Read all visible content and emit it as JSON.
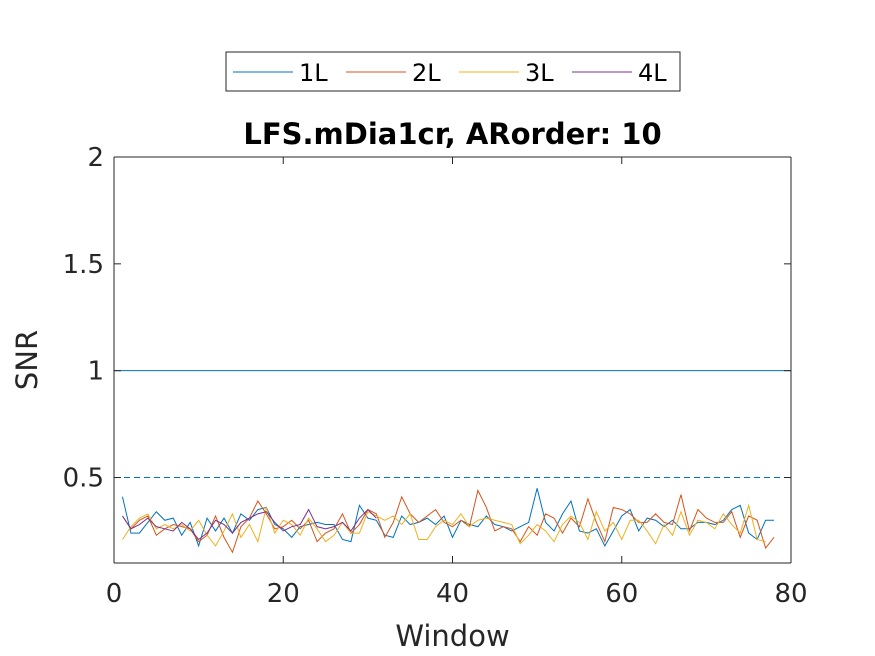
{
  "chart_data": {
    "type": "line",
    "title": "LFS.mDia1cr, ARorder: 10",
    "xlabel": "Window",
    "ylabel": "SNR",
    "xlim": [
      0,
      80
    ],
    "ylim": [
      0.1,
      2
    ],
    "xticks": [
      0,
      20,
      40,
      60,
      80
    ],
    "xtick_labels": [
      "0",
      "20",
      "40",
      "60",
      "80"
    ],
    "yticks": [
      0.5,
      1,
      1.5,
      2
    ],
    "ytick_labels": [
      "0.5",
      "1",
      "1.5",
      "2"
    ],
    "grid": false,
    "legend_position": "top-center, outside plot, horizontal",
    "reference_lines": [
      {
        "y": 0.5,
        "style": "dashed",
        "color": "#0072BD"
      },
      {
        "y": 1.0,
        "style": "solid",
        "color": "#0072BD"
      },
      {
        "y": 2.0,
        "style": "dashed",
        "color": "#0072BD"
      }
    ],
    "series": [
      {
        "name": "1L",
        "color": "#0072BD",
        "x": [
          1,
          2,
          3,
          4,
          5,
          6,
          7,
          8,
          9,
          10,
          11,
          12,
          13,
          14,
          15,
          16,
          17,
          18,
          19,
          20,
          21,
          22,
          23,
          24,
          25,
          26,
          27,
          28,
          29,
          30,
          31,
          32,
          33,
          34,
          35,
          36,
          37,
          38,
          39,
          40,
          41,
          42,
          43,
          44,
          45,
          46,
          47,
          48,
          49,
          50,
          51,
          52,
          53,
          54,
          55,
          56,
          57,
          58,
          59,
          60,
          61,
          62,
          63,
          64,
          65,
          66,
          67,
          68,
          69,
          70,
          71,
          72,
          73,
          74,
          75,
          76,
          77,
          78
        ],
        "values": [
          0.41,
          0.24,
          0.24,
          0.29,
          0.34,
          0.3,
          0.31,
          0.23,
          0.29,
          0.18,
          0.31,
          0.25,
          0.31,
          0.24,
          0.33,
          0.3,
          0.35,
          0.36,
          0.28,
          0.26,
          0.22,
          0.27,
          0.28,
          0.29,
          0.28,
          0.28,
          0.21,
          0.2,
          0.37,
          0.31,
          0.3,
          0.23,
          0.22,
          0.32,
          0.28,
          0.29,
          0.31,
          0.28,
          0.32,
          0.22,
          0.3,
          0.28,
          0.27,
          0.32,
          0.28,
          0.27,
          0.25,
          0.27,
          0.29,
          0.45,
          0.29,
          0.25,
          0.33,
          0.39,
          0.25,
          0.24,
          0.26,
          0.18,
          0.25,
          0.32,
          0.35,
          0.25,
          0.31,
          0.3,
          0.27,
          0.3,
          0.26,
          0.26,
          0.29,
          0.29,
          0.28,
          0.3,
          0.35,
          0.37,
          0.24,
          0.21,
          0.3,
          0.3
        ]
      },
      {
        "name": "2L",
        "color": "#D95319",
        "x": [
          1,
          2,
          3,
          4,
          5,
          6,
          7,
          8,
          9,
          10,
          11,
          12,
          13,
          14,
          15,
          16,
          17,
          18,
          19,
          20,
          21,
          22,
          23,
          24,
          25,
          26,
          27,
          28,
          29,
          30,
          31,
          32,
          33,
          34,
          35,
          36,
          37,
          38,
          39,
          40,
          41,
          42,
          43,
          44,
          45,
          46,
          47,
          48,
          49,
          50,
          51,
          52,
          53,
          54,
          55,
          56,
          57,
          58,
          59,
          60,
          61,
          62,
          63,
          64,
          65,
          66,
          67,
          68,
          69,
          70,
          71,
          72,
          73,
          74,
          75,
          76,
          77,
          78
        ],
        "values": [
          0.32,
          0.26,
          0.3,
          0.32,
          0.23,
          0.26,
          0.28,
          0.27,
          0.26,
          0.2,
          0.23,
          0.32,
          0.22,
          0.15,
          0.27,
          0.31,
          0.39,
          0.33,
          0.26,
          0.27,
          0.3,
          0.26,
          0.3,
          0.2,
          0.24,
          0.26,
          0.33,
          0.24,
          0.28,
          0.35,
          0.33,
          0.22,
          0.29,
          0.41,
          0.33,
          0.29,
          0.32,
          0.35,
          0.29,
          0.27,
          0.3,
          0.27,
          0.44,
          0.36,
          0.25,
          0.27,
          0.26,
          0.2,
          0.27,
          0.23,
          0.33,
          0.31,
          0.24,
          0.31,
          0.27,
          0.4,
          0.29,
          0.2,
          0.36,
          0.35,
          0.33,
          0.29,
          0.29,
          0.33,
          0.29,
          0.28,
          0.42,
          0.25,
          0.35,
          0.31,
          0.29,
          0.29,
          0.34,
          0.22,
          0.32,
          0.3,
          0.17,
          0.22
        ]
      },
      {
        "name": "3L",
        "color": "#EDB120",
        "x": [
          1,
          2,
          3,
          4,
          5,
          6,
          7,
          8,
          9,
          10,
          11,
          12,
          13,
          14,
          15,
          16,
          17,
          18,
          19,
          20,
          21,
          22,
          23,
          24,
          25,
          26,
          27,
          28,
          29,
          30,
          31,
          32,
          33,
          34,
          35,
          36,
          37,
          38,
          39,
          40,
          41,
          42,
          43,
          44,
          45,
          46,
          47,
          48,
          49,
          50,
          51,
          52,
          53,
          54,
          55,
          56,
          57,
          58,
          59,
          60,
          61,
          62,
          63,
          64,
          65,
          66,
          67,
          68,
          69,
          70,
          71,
          72,
          73,
          74,
          75,
          76,
          77
        ],
        "values": [
          0.21,
          0.27,
          0.31,
          0.33,
          0.26,
          0.28,
          0.26,
          0.28,
          0.25,
          0.3,
          0.23,
          0.18,
          0.25,
          0.33,
          0.22,
          0.28,
          0.2,
          0.36,
          0.24,
          0.3,
          0.28,
          0.23,
          0.31,
          0.26,
          0.2,
          0.23,
          0.29,
          0.24,
          0.24,
          0.34,
          0.32,
          0.3,
          0.32,
          0.28,
          0.33,
          0.21,
          0.21,
          0.27,
          0.3,
          0.28,
          0.33,
          0.27,
          0.3,
          0.31,
          0.3,
          0.29,
          0.28,
          0.19,
          0.23,
          0.28,
          0.25,
          0.2,
          0.28,
          0.32,
          0.29,
          0.21,
          0.34,
          0.25,
          0.29,
          0.21,
          0.3,
          0.3,
          0.25,
          0.19,
          0.28,
          0.23,
          0.34,
          0.23,
          0.3,
          0.29,
          0.26,
          0.33,
          0.28,
          0.24,
          0.37,
          0.21,
          0.2
        ]
      },
      {
        "name": "4L",
        "color": "#7E2F8E",
        "x": [
          1,
          2,
          3,
          4,
          5,
          6,
          7,
          8,
          9,
          10,
          11,
          12,
          13,
          14,
          15,
          16,
          17,
          18,
          19,
          20,
          21,
          22,
          23,
          24,
          25,
          26,
          27,
          28,
          29,
          30,
          31
        ],
        "values": [
          0.32,
          0.26,
          0.28,
          0.31,
          0.27,
          0.26,
          0.25,
          0.29,
          0.26,
          0.21,
          0.24,
          0.3,
          0.28,
          0.24,
          0.29,
          0.31,
          0.33,
          0.34,
          0.29,
          0.25,
          0.27,
          0.28,
          0.35,
          0.27,
          0.26,
          0.27,
          0.29,
          0.25,
          0.31,
          0.35,
          0.31
        ]
      }
    ]
  }
}
